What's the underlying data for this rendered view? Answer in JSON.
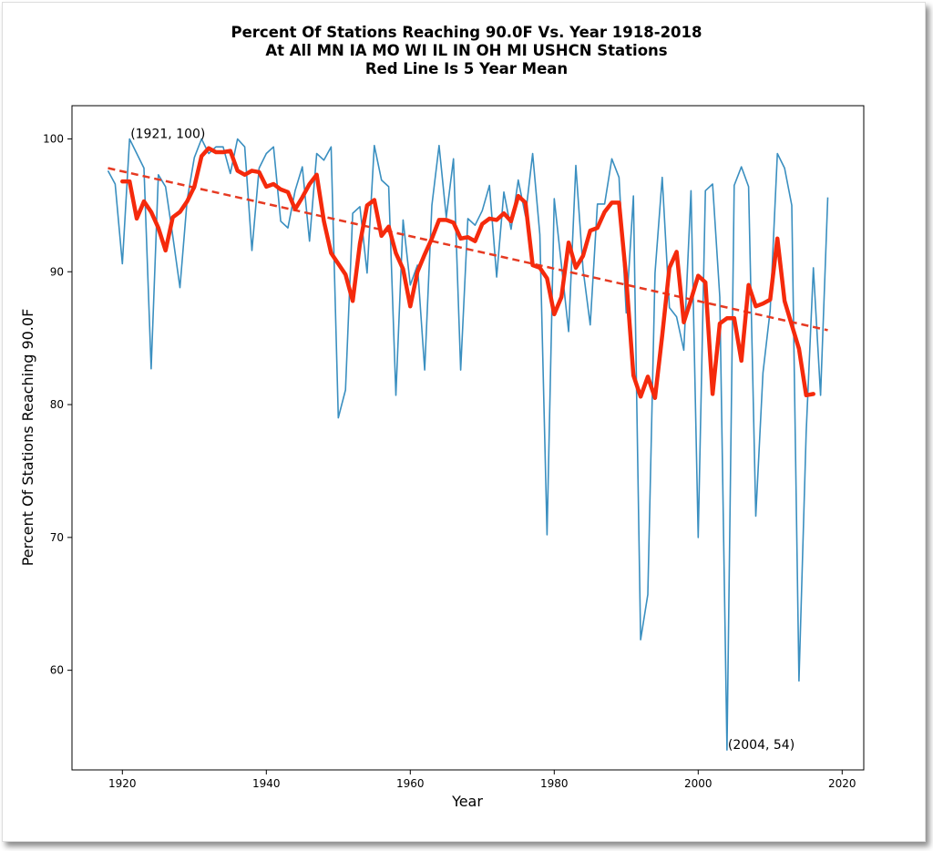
{
  "chart_data": {
    "type": "line",
    "title_lines": [
      "Percent Of Stations Reaching 90.0F Vs. Year 1918-2018",
      "At All MN IA MO WI IL IN OH MI USHCN Stations",
      "Red Line Is 5 Year Mean"
    ],
    "xlabel": "Year",
    "ylabel": "Percent Of Stations Reaching 90.0F",
    "xlim": [
      1913,
      2023
    ],
    "ylim": [
      52.5,
      102.5
    ],
    "xticks": [
      1920,
      1940,
      1960,
      1980,
      2000,
      2020
    ],
    "yticks": [
      60,
      70,
      80,
      90,
      100
    ],
    "grid": false,
    "colors": {
      "yearly": "#3a8fc0",
      "mean": "#f52a0c",
      "trend": "#e63a22"
    },
    "annotations": [
      {
        "text": "(1921, 100)",
        "x": 1921,
        "y": 100
      },
      {
        "text": "(2004, 54)",
        "x": 2004,
        "y": 54
      }
    ],
    "series": [
      {
        "kind": "yearly",
        "x": [
          1918,
          1919,
          1920,
          1921,
          1922,
          1923,
          1924,
          1925,
          1926,
          1927,
          1928,
          1929,
          1930,
          1931,
          1932,
          1933,
          1934,
          1935,
          1936,
          1937,
          1938,
          1939,
          1940,
          1941,
          1942,
          1943,
          1944,
          1945,
          1946,
          1947,
          1948,
          1949,
          1950,
          1951,
          1952,
          1953,
          1954,
          1955,
          1956,
          1957,
          1958,
          1959,
          1960,
          1961,
          1962,
          1963,
          1964,
          1965,
          1966,
          1967,
          1968,
          1969,
          1970,
          1971,
          1972,
          1973,
          1974,
          1975,
          1976,
          1977,
          1978,
          1979,
          1980,
          1981,
          1982,
          1983,
          1984,
          1985,
          1986,
          1987,
          1988,
          1989,
          1990,
          1991,
          1992,
          1993,
          1994,
          1995,
          1996,
          1997,
          1998,
          1999,
          2000,
          2001,
          2002,
          2003,
          2004,
          2005,
          2006,
          2007,
          2008,
          2009,
          2010,
          2011,
          2012,
          2013,
          2014,
          2015,
          2016,
          2017,
          2018
        ],
        "y": [
          97.6,
          96.6,
          90.6,
          100,
          98.9,
          97.8,
          82.7,
          97.3,
          96.4,
          92.7,
          88.8,
          95.4,
          98.6,
          100,
          98.9,
          99.4,
          99.4,
          97.4,
          100,
          99.4,
          91.6,
          97.8,
          98.9,
          99.4,
          93.8,
          93.3,
          96.1,
          97.9,
          92.3,
          98.9,
          98.4,
          99.4,
          79,
          81.1,
          94.4,
          94.9,
          89.9,
          99.5,
          96.9,
          96.4,
          80.7,
          93.9,
          89,
          90.5,
          82.6,
          95,
          99.5,
          94.1,
          98.5,
          82.6,
          94,
          93.5,
          94.6,
          96.5,
          89.6,
          96,
          93.2,
          96.9,
          94.2,
          98.9,
          92.8,
          70.2,
          95.5,
          90.5,
          85.5,
          98,
          90.2,
          86,
          95.1,
          95.1,
          98.5,
          97.1,
          86.9,
          95.7,
          62.3,
          65.7,
          89.9,
          97.1,
          87.3,
          86.6,
          84.1,
          96.1,
          70,
          96.1,
          96.6,
          88.1,
          54,
          96.5,
          97.9,
          96.4,
          71.6,
          82.4,
          87.1,
          98.9,
          97.8,
          95,
          59.2,
          77.9,
          90.3,
          80.7,
          95.6
        ]
      },
      {
        "kind": "mean",
        "x": [
          1920,
          1921,
          1922,
          1923,
          1924,
          1925,
          1926,
          1927,
          1928,
          1929,
          1930,
          1931,
          1932,
          1933,
          1934,
          1935,
          1936,
          1937,
          1938,
          1939,
          1940,
          1941,
          1942,
          1943,
          1944,
          1945,
          1946,
          1947,
          1948,
          1949,
          1950,
          1951,
          1952,
          1953,
          1954,
          1955,
          1956,
          1957,
          1958,
          1959,
          1960,
          1961,
          1962,
          1963,
          1964,
          1965,
          1966,
          1967,
          1968,
          1969,
          1970,
          1971,
          1972,
          1973,
          1974,
          1975,
          1976,
          1977,
          1978,
          1979,
          1980,
          1981,
          1982,
          1983,
          1984,
          1985,
          1986,
          1987,
          1988,
          1989,
          1990,
          1991,
          1992,
          1993,
          1994,
          1995,
          1996,
          1997,
          1998,
          1999,
          2000,
          2001,
          2002,
          2003,
          2004,
          2005,
          2006,
          2007,
          2008,
          2009,
          2010,
          2011,
          2012,
          2013,
          2014,
          2015,
          2016
        ],
        "y": [
          96.8,
          96.8,
          94.0,
          95.3,
          94.5,
          93.3,
          91.6,
          94.1,
          94.5,
          95.3,
          96.4,
          98.7,
          99.3,
          99.0,
          99.0,
          99.1,
          97.6,
          97.3,
          97.6,
          97.5,
          96.4,
          96.6,
          96.2,
          96.0,
          94.7,
          95.6,
          96.6,
          97.3,
          93.8,
          91.4,
          90.6,
          89.8,
          87.8,
          92.1,
          95.0,
          95.4,
          92.7,
          93.4,
          91.4,
          90.2,
          87.4,
          90.0,
          91.3,
          92.5,
          93.9,
          93.9,
          93.7,
          92.5,
          92.6,
          92.3,
          93.6,
          94.0,
          93.9,
          94.4,
          93.8,
          95.7,
          95.2,
          90.5,
          90.3,
          89.5,
          86.8,
          88.1,
          92.2,
          90.3,
          91.2,
          93.1,
          93.3,
          94.5,
          95.2,
          95.2,
          89.5,
          82.2,
          80.6,
          82.1,
          80.5,
          85.2,
          90.3,
          91.5,
          86.2,
          87.9,
          89.7,
          89.2,
          80.8,
          86.1,
          86.5,
          86.5,
          83.3,
          89.0,
          87.4,
          87.6,
          87.9,
          92.5,
          87.8,
          86.0,
          84.2,
          80.7,
          80.8
        ]
      },
      {
        "kind": "trend",
        "x": [
          1918,
          2018
        ],
        "y": [
          97.8,
          85.6
        ]
      }
    ]
  }
}
